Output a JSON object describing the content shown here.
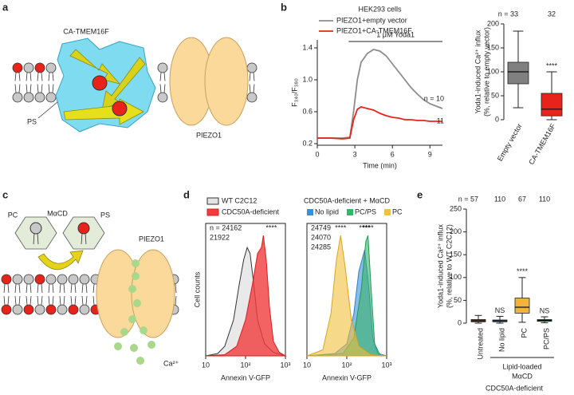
{
  "panel_labels": [
    "a",
    "b",
    "c",
    "d",
    "e"
  ],
  "diagram_a": {
    "protein1": "CA-TMEM16F",
    "lipid": "PS",
    "protein2": "PIEZO1"
  },
  "diagram_c": {
    "lipid1": "PC",
    "carrier": "MαCD",
    "lipid2": "PS",
    "channel": "PIEZO1",
    "ion": "Ca²⁺"
  },
  "chart_data": [
    {
      "type": "line",
      "title": "HEK293 cells",
      "xlabel": "Time (min)",
      "ylabel": "F₃₄₀/F₃₈₀",
      "xlim": [
        0,
        10
      ],
      "ylim": [
        0.18,
        1.5
      ],
      "xticks": [
        0,
        3,
        6,
        9
      ],
      "yticks": [
        0.2,
        0.6,
        {
          "value": 1,
          "label": "1.0"
        },
        1.4
      ],
      "stimulus": {
        "label": "1 μM Yoda1",
        "start": 2.5,
        "end": 10
      },
      "series": [
        {
          "name": "PIEZO1+empty vector",
          "color": "#8c8c8c",
          "end_label": "n = 10",
          "x": [
            0,
            1,
            2,
            2.6,
            2.9,
            3.2,
            3.5,
            4,
            4.5,
            5,
            5.5,
            6,
            6.5,
            7,
            7.5,
            8,
            8.5,
            9,
            9.5,
            10
          ],
          "values": [
            0.27,
            0.27,
            0.27,
            0.28,
            0.6,
            1.0,
            1.22,
            1.33,
            1.38,
            1.36,
            1.3,
            1.2,
            1.1,
            1.0,
            0.9,
            0.82,
            0.75,
            0.7,
            0.67,
            0.64
          ]
        },
        {
          "name": "PIEZO1+CA-TMEM16F",
          "color": "#e8231b",
          "end_label": "11",
          "x": [
            0,
            1,
            2,
            2.6,
            2.9,
            3.2,
            3.5,
            4,
            4.5,
            5,
            5.5,
            6,
            6.5,
            7,
            7.5,
            8,
            8.5,
            9,
            9.5,
            10
          ],
          "values": [
            0.27,
            0.27,
            0.26,
            0.27,
            0.5,
            0.63,
            0.66,
            0.64,
            0.62,
            0.58,
            0.55,
            0.53,
            0.52,
            0.5,
            0.5,
            0.49,
            0.49,
            0.48,
            0.48,
            0.48
          ]
        }
      ]
    },
    {
      "type": "box",
      "ylabel_lines": [
        "Yoda1-induced Ca²⁺ influx",
        "(%, relative to empty vector)"
      ],
      "ylim": [
        0,
        200
      ],
      "yticks": [
        0,
        50,
        100,
        150,
        200
      ],
      "categories": [
        "Empty vector",
        "CA-TMEM16F"
      ],
      "colors": [
        "#808080",
        "#e8231b"
      ],
      "n_labels": [
        "n = 33",
        "32"
      ],
      "significance": [
        null,
        "****"
      ],
      "boxes": [
        {
          "low": 25,
          "q1": 75,
          "median": 100,
          "q3": 120,
          "high": 185
        },
        {
          "low": 0,
          "q1": 8,
          "median": 22,
          "q3": 55,
          "high": 100
        }
      ]
    },
    {
      "type": "area",
      "xlabel": "Annexin V-GFP",
      "ylabel": "Cell counts",
      "xscale": "log",
      "xlim": [
        10,
        1000
      ],
      "ylim": [
        0,
        110
      ],
      "xticks": [
        10,
        {
          "value": 100,
          "label": "10²"
        },
        {
          "value": 1000,
          "label": "10³"
        }
      ],
      "series": [
        {
          "name": "WT C2C12",
          "color": "#333333",
          "fill": "#e3e3e3",
          "count_label": "n = 24162",
          "x": [
            10,
            20,
            30,
            50,
            70,
            90,
            110,
            130,
            160,
            200,
            300,
            500,
            1000
          ],
          "values": [
            0,
            2,
            8,
            30,
            60,
            80,
            90,
            85,
            60,
            30,
            10,
            3,
            0
          ]
        },
        {
          "name": "CDC50A-deficient",
          "color": "#d61f1f",
          "fill": "#f03c3c",
          "count_label": "21922",
          "significance": "****",
          "x": [
            10,
            30,
            60,
            100,
            150,
            200,
            250,
            280,
            330,
            400,
            500,
            700,
            1000
          ],
          "values": [
            0,
            1,
            8,
            30,
            60,
            85,
            90,
            100,
            80,
            40,
            12,
            3,
            0
          ]
        }
      ]
    },
    {
      "type": "area",
      "title": "CDC50A-deficient + MαCD",
      "xlabel": "Annexin V-GFP",
      "xscale": "log",
      "xlim": [
        10,
        1000
      ],
      "ylim": [
        0,
        110
      ],
      "xticks": [
        10,
        {
          "value": 100,
          "label": "10²"
        },
        {
          "value": 1000,
          "label": "10³"
        }
      ],
      "series": [
        {
          "name": "No lipid",
          "color": "#2f7fc8",
          "fill": "#3b8fd6",
          "count_label": "24749",
          "significance": "****",
          "x": [
            10,
            50,
            100,
            150,
            200,
            280,
            350,
            450,
            600,
            1000
          ],
          "values": [
            0,
            2,
            10,
            35,
            70,
            88,
            60,
            15,
            2,
            0
          ]
        },
        {
          "name": "PC/PS",
          "color": "#1f9a55",
          "fill": "#36b36b",
          "count_label": "24285",
          "significance": "****",
          "x": [
            10,
            80,
            150,
            230,
            300,
            340,
            400,
            500,
            700,
            1000
          ],
          "values": [
            0,
            2,
            15,
            55,
            95,
            100,
            60,
            10,
            0,
            0
          ]
        },
        {
          "name": "PC",
          "color": "#d9a520",
          "fill": "#f2c03c",
          "count_label": "24070",
          "significance": "****",
          "x": [
            10,
            25,
            40,
            55,
            70,
            90,
            130,
            200,
            400,
            1000
          ],
          "values": [
            0,
            5,
            35,
            80,
            100,
            75,
            30,
            8,
            1,
            0
          ]
        }
      ]
    },
    {
      "type": "box",
      "ylabel_lines": [
        "Yoda1-induced Ca²⁺ influx",
        "(%, relative to WT C2C12)"
      ],
      "ylim": [
        0,
        250
      ],
      "yticks": [
        0,
        50,
        100,
        150,
        200,
        250
      ],
      "categories": [
        "Untreated",
        "No lipid",
        "PC",
        "PC/PS"
      ],
      "colors": [
        "#9b2d2d",
        "#3b8fd6",
        "#f2b33d",
        "#2f9a5a"
      ],
      "n_labels": [
        "n = 57",
        "110",
        "67",
        "110"
      ],
      "significance": [
        null,
        "NS",
        "****",
        "NS"
      ],
      "boxes": [
        {
          "low": 0,
          "q1": 3,
          "median": 5,
          "q3": 8,
          "high": 17
        },
        {
          "low": 0,
          "q1": 3,
          "median": 5,
          "q3": 7,
          "high": 15
        },
        {
          "low": 2,
          "q1": 22,
          "median": 35,
          "q3": 55,
          "high": 100
        },
        {
          "low": 1,
          "q1": 4,
          "median": 6,
          "q3": 8,
          "high": 14
        }
      ],
      "group_label_lines": [
        "Lipid-loaded",
        "MαCD"
      ],
      "footer": "CDC50A-deficient"
    }
  ]
}
